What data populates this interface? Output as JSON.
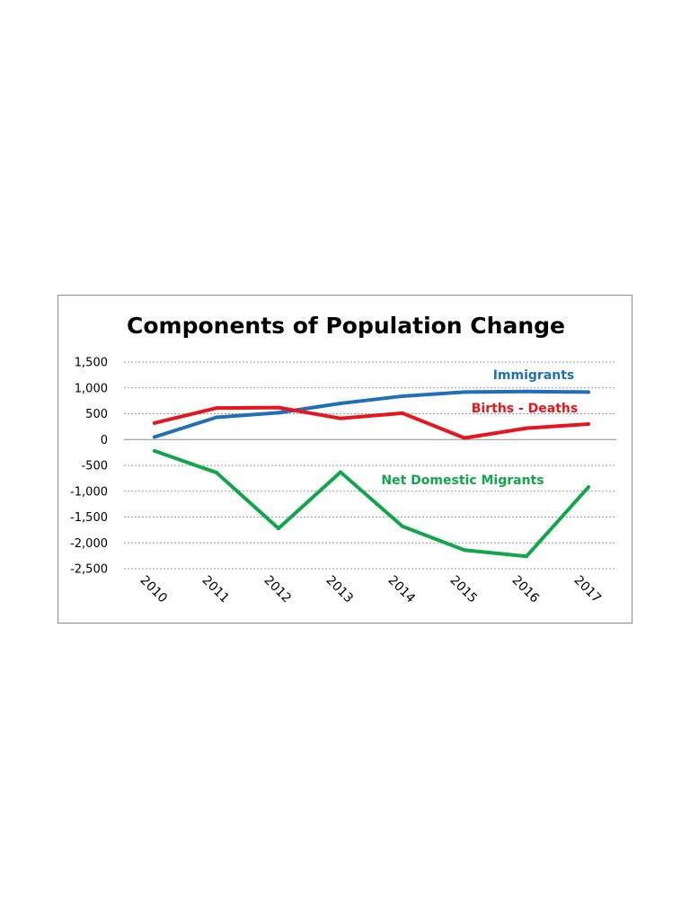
{
  "chart_data": {
    "type": "line",
    "title": "Components of Population Change",
    "xlabel": "",
    "ylabel": "",
    "categories": [
      "2010",
      "2011",
      "2012",
      "2013",
      "2014",
      "2015",
      "2016",
      "2017"
    ],
    "ylim": [
      -2500,
      1500
    ],
    "y_ticks": [
      1500,
      1000,
      500,
      0,
      -500,
      -1000,
      -1500,
      -2000,
      -2500
    ],
    "y_tick_labels": [
      "1,500",
      "1,000",
      "500",
      "0",
      "-500",
      "-1,000",
      "-1,500",
      "-2,000",
      "-2,500"
    ],
    "grid": "horizontal dotted",
    "legend": "none (series labeled directly on chart)",
    "series": [
      {
        "name": "Immigrants",
        "color": "#1f6fba",
        "values": [
          50,
          430,
          520,
          700,
          840,
          920,
          930,
          920
        ]
      },
      {
        "name": "Births - Deaths",
        "color": "#e8151c",
        "values": [
          320,
          610,
          620,
          410,
          510,
          30,
          220,
          300
        ]
      },
      {
        "name": "Net Domestic Migrants",
        "color": "#12a64b",
        "values": [
          -220,
          -640,
          -1720,
          -630,
          -1680,
          -2140,
          -2260,
          -920
        ]
      }
    ]
  }
}
